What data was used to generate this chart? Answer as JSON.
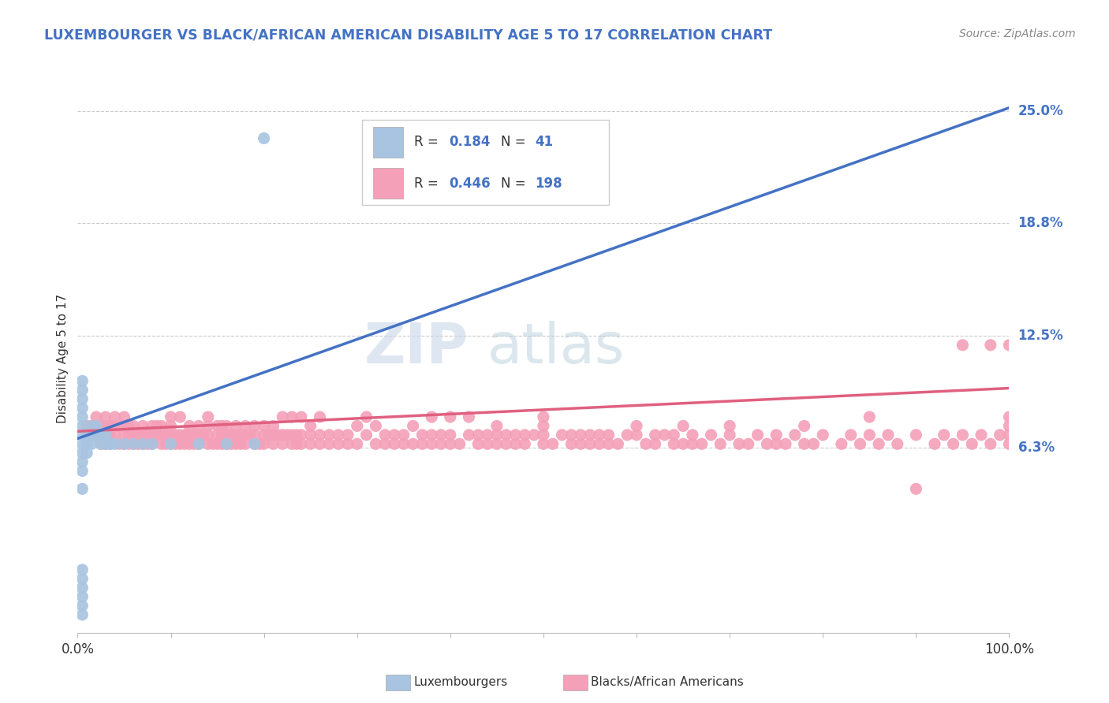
{
  "title": "LUXEMBOURGER VS BLACK/AFRICAN AMERICAN DISABILITY AGE 5 TO 17 CORRELATION CHART",
  "source": "Source: ZipAtlas.com",
  "ylabel": "Disability Age 5 to 17",
  "color_lux": "#a8c4e0",
  "color_black": "#f4a0b8",
  "color_lux_line": "#4472c4",
  "color_black_line": "#e06080",
  "color_lux_dash": "#8ab0d8",
  "xlim": [
    0.0,
    1.0
  ],
  "ylim": [
    -0.04,
    0.265
  ],
  "yticks_right": [
    0.063,
    0.125,
    0.188,
    0.25
  ],
  "ytick_right_labels": [
    "6.3%",
    "12.5%",
    "18.8%",
    "25.0%"
  ],
  "xticks": [
    0.0,
    0.1,
    0.2,
    0.3,
    0.4,
    0.5,
    0.6,
    0.7,
    0.8,
    0.9,
    1.0
  ],
  "xticklabels": [
    "0.0%",
    "",
    "",
    "",
    "",
    "",
    "",
    "",
    "",
    "",
    "100.0%"
  ],
  "lux_trendline_x": [
    0.0,
    1.0
  ],
  "lux_trendline_y": [
    0.068,
    0.252
  ],
  "black_trendline_x": [
    0.0,
    1.0
  ],
  "black_trendline_y": [
    0.072,
    0.096
  ],
  "lux_scatter": [
    [
      0.005,
      0.04
    ],
    [
      0.005,
      0.05
    ],
    [
      0.005,
      0.055
    ],
    [
      0.005,
      0.06
    ],
    [
      0.005,
      0.065
    ],
    [
      0.005,
      0.07
    ],
    [
      0.005,
      0.075
    ],
    [
      0.005,
      0.08
    ],
    [
      0.005,
      0.085
    ],
    [
      0.005,
      0.09
    ],
    [
      0.005,
      0.095
    ],
    [
      0.005,
      0.1
    ],
    [
      0.005,
      -0.005
    ],
    [
      0.005,
      -0.01
    ],
    [
      0.005,
      -0.015
    ],
    [
      0.005,
      -0.02
    ],
    [
      0.005,
      -0.025
    ],
    [
      0.005,
      -0.03
    ],
    [
      0.01,
      0.06
    ],
    [
      0.01,
      0.065
    ],
    [
      0.01,
      0.07
    ],
    [
      0.015,
      0.065
    ],
    [
      0.015,
      0.07
    ],
    [
      0.015,
      0.075
    ],
    [
      0.02,
      0.07
    ],
    [
      0.02,
      0.075
    ],
    [
      0.025,
      0.065
    ],
    [
      0.025,
      0.07
    ],
    [
      0.03,
      0.065
    ],
    [
      0.03,
      0.07
    ],
    [
      0.035,
      0.065
    ],
    [
      0.04,
      0.065
    ],
    [
      0.05,
      0.065
    ],
    [
      0.06,
      0.065
    ],
    [
      0.07,
      0.065
    ],
    [
      0.08,
      0.065
    ],
    [
      0.1,
      0.065
    ],
    [
      0.13,
      0.065
    ],
    [
      0.16,
      0.065
    ],
    [
      0.19,
      0.065
    ],
    [
      0.2,
      0.235
    ]
  ],
  "black_scatter": [
    [
      0.01,
      0.075
    ],
    [
      0.015,
      0.07
    ],
    [
      0.015,
      0.075
    ],
    [
      0.02,
      0.07
    ],
    [
      0.02,
      0.075
    ],
    [
      0.02,
      0.08
    ],
    [
      0.025,
      0.065
    ],
    [
      0.025,
      0.07
    ],
    [
      0.025,
      0.075
    ],
    [
      0.03,
      0.065
    ],
    [
      0.03,
      0.07
    ],
    [
      0.03,
      0.075
    ],
    [
      0.03,
      0.08
    ],
    [
      0.035,
      0.065
    ],
    [
      0.035,
      0.07
    ],
    [
      0.035,
      0.075
    ],
    [
      0.04,
      0.07
    ],
    [
      0.04,
      0.075
    ],
    [
      0.04,
      0.08
    ],
    [
      0.045,
      0.065
    ],
    [
      0.045,
      0.075
    ],
    [
      0.05,
      0.065
    ],
    [
      0.05,
      0.07
    ],
    [
      0.05,
      0.075
    ],
    [
      0.05,
      0.08
    ],
    [
      0.055,
      0.065
    ],
    [
      0.055,
      0.07
    ],
    [
      0.055,
      0.075
    ],
    [
      0.06,
      0.065
    ],
    [
      0.06,
      0.07
    ],
    [
      0.06,
      0.075
    ],
    [
      0.065,
      0.065
    ],
    [
      0.065,
      0.07
    ],
    [
      0.07,
      0.065
    ],
    [
      0.07,
      0.07
    ],
    [
      0.07,
      0.075
    ],
    [
      0.075,
      0.065
    ],
    [
      0.075,
      0.07
    ],
    [
      0.08,
      0.065
    ],
    [
      0.08,
      0.07
    ],
    [
      0.08,
      0.075
    ],
    [
      0.085,
      0.07
    ],
    [
      0.085,
      0.075
    ],
    [
      0.09,
      0.065
    ],
    [
      0.09,
      0.07
    ],
    [
      0.09,
      0.075
    ],
    [
      0.095,
      0.065
    ],
    [
      0.095,
      0.07
    ],
    [
      0.1,
      0.065
    ],
    [
      0.1,
      0.07
    ],
    [
      0.1,
      0.075
    ],
    [
      0.1,
      0.08
    ],
    [
      0.105,
      0.065
    ],
    [
      0.105,
      0.07
    ],
    [
      0.11,
      0.065
    ],
    [
      0.11,
      0.07
    ],
    [
      0.11,
      0.08
    ],
    [
      0.115,
      0.065
    ],
    [
      0.115,
      0.07
    ],
    [
      0.12,
      0.065
    ],
    [
      0.12,
      0.07
    ],
    [
      0.12,
      0.075
    ],
    [
      0.125,
      0.065
    ],
    [
      0.125,
      0.07
    ],
    [
      0.13,
      0.065
    ],
    [
      0.13,
      0.07
    ],
    [
      0.13,
      0.075
    ],
    [
      0.135,
      0.07
    ],
    [
      0.14,
      0.065
    ],
    [
      0.14,
      0.07
    ],
    [
      0.14,
      0.075
    ],
    [
      0.14,
      0.08
    ],
    [
      0.145,
      0.065
    ],
    [
      0.15,
      0.065
    ],
    [
      0.15,
      0.07
    ],
    [
      0.15,
      0.075
    ],
    [
      0.155,
      0.065
    ],
    [
      0.155,
      0.07
    ],
    [
      0.155,
      0.075
    ],
    [
      0.16,
      0.065
    ],
    [
      0.16,
      0.07
    ],
    [
      0.16,
      0.075
    ],
    [
      0.165,
      0.065
    ],
    [
      0.165,
      0.07
    ],
    [
      0.17,
      0.065
    ],
    [
      0.17,
      0.07
    ],
    [
      0.17,
      0.075
    ],
    [
      0.175,
      0.065
    ],
    [
      0.175,
      0.07
    ],
    [
      0.18,
      0.065
    ],
    [
      0.18,
      0.07
    ],
    [
      0.18,
      0.075
    ],
    [
      0.185,
      0.07
    ],
    [
      0.19,
      0.065
    ],
    [
      0.19,
      0.07
    ],
    [
      0.19,
      0.075
    ],
    [
      0.195,
      0.065
    ],
    [
      0.2,
      0.065
    ],
    [
      0.2,
      0.07
    ],
    [
      0.2,
      0.075
    ],
    [
      0.205,
      0.07
    ],
    [
      0.21,
      0.065
    ],
    [
      0.21,
      0.07
    ],
    [
      0.21,
      0.075
    ],
    [
      0.215,
      0.07
    ],
    [
      0.22,
      0.065
    ],
    [
      0.22,
      0.07
    ],
    [
      0.22,
      0.08
    ],
    [
      0.225,
      0.07
    ],
    [
      0.23,
      0.065
    ],
    [
      0.23,
      0.07
    ],
    [
      0.23,
      0.08
    ],
    [
      0.235,
      0.065
    ],
    [
      0.235,
      0.07
    ],
    [
      0.24,
      0.065
    ],
    [
      0.24,
      0.07
    ],
    [
      0.24,
      0.08
    ],
    [
      0.25,
      0.065
    ],
    [
      0.25,
      0.07
    ],
    [
      0.25,
      0.075
    ],
    [
      0.26,
      0.065
    ],
    [
      0.26,
      0.07
    ],
    [
      0.26,
      0.08
    ],
    [
      0.27,
      0.065
    ],
    [
      0.27,
      0.07
    ],
    [
      0.28,
      0.065
    ],
    [
      0.28,
      0.07
    ],
    [
      0.29,
      0.065
    ],
    [
      0.29,
      0.07
    ],
    [
      0.3,
      0.065
    ],
    [
      0.3,
      0.075
    ],
    [
      0.31,
      0.07
    ],
    [
      0.31,
      0.08
    ],
    [
      0.32,
      0.065
    ],
    [
      0.32,
      0.075
    ],
    [
      0.33,
      0.065
    ],
    [
      0.33,
      0.07
    ],
    [
      0.34,
      0.065
    ],
    [
      0.34,
      0.07
    ],
    [
      0.35,
      0.065
    ],
    [
      0.35,
      0.07
    ],
    [
      0.36,
      0.065
    ],
    [
      0.36,
      0.075
    ],
    [
      0.37,
      0.065
    ],
    [
      0.37,
      0.07
    ],
    [
      0.38,
      0.065
    ],
    [
      0.38,
      0.07
    ],
    [
      0.38,
      0.08
    ],
    [
      0.39,
      0.065
    ],
    [
      0.39,
      0.07
    ],
    [
      0.4,
      0.065
    ],
    [
      0.4,
      0.07
    ],
    [
      0.4,
      0.08
    ],
    [
      0.41,
      0.065
    ],
    [
      0.42,
      0.07
    ],
    [
      0.42,
      0.08
    ],
    [
      0.43,
      0.065
    ],
    [
      0.43,
      0.07
    ],
    [
      0.44,
      0.065
    ],
    [
      0.44,
      0.07
    ],
    [
      0.45,
      0.065
    ],
    [
      0.45,
      0.07
    ],
    [
      0.45,
      0.075
    ],
    [
      0.46,
      0.065
    ],
    [
      0.46,
      0.07
    ],
    [
      0.47,
      0.065
    ],
    [
      0.47,
      0.07
    ],
    [
      0.48,
      0.065
    ],
    [
      0.48,
      0.07
    ],
    [
      0.49,
      0.07
    ],
    [
      0.5,
      0.065
    ],
    [
      0.5,
      0.07
    ],
    [
      0.5,
      0.075
    ],
    [
      0.5,
      0.08
    ],
    [
      0.51,
      0.065
    ],
    [
      0.52,
      0.07
    ],
    [
      0.53,
      0.065
    ],
    [
      0.53,
      0.07
    ],
    [
      0.54,
      0.065
    ],
    [
      0.54,
      0.07
    ],
    [
      0.55,
      0.065
    ],
    [
      0.55,
      0.07
    ],
    [
      0.56,
      0.065
    ],
    [
      0.56,
      0.07
    ],
    [
      0.57,
      0.065
    ],
    [
      0.57,
      0.07
    ],
    [
      0.58,
      0.065
    ],
    [
      0.59,
      0.07
    ],
    [
      0.6,
      0.07
    ],
    [
      0.6,
      0.075
    ],
    [
      0.61,
      0.065
    ],
    [
      0.62,
      0.065
    ],
    [
      0.62,
      0.07
    ],
    [
      0.63,
      0.07
    ],
    [
      0.64,
      0.065
    ],
    [
      0.64,
      0.07
    ],
    [
      0.65,
      0.065
    ],
    [
      0.65,
      0.075
    ],
    [
      0.66,
      0.065
    ],
    [
      0.66,
      0.07
    ],
    [
      0.67,
      0.065
    ],
    [
      0.68,
      0.07
    ],
    [
      0.69,
      0.065
    ],
    [
      0.7,
      0.07
    ],
    [
      0.7,
      0.075
    ],
    [
      0.71,
      0.065
    ],
    [
      0.72,
      0.065
    ],
    [
      0.73,
      0.07
    ],
    [
      0.74,
      0.065
    ],
    [
      0.75,
      0.065
    ],
    [
      0.75,
      0.07
    ],
    [
      0.76,
      0.065
    ],
    [
      0.77,
      0.07
    ],
    [
      0.78,
      0.065
    ],
    [
      0.78,
      0.075
    ],
    [
      0.79,
      0.065
    ],
    [
      0.8,
      0.07
    ],
    [
      0.82,
      0.065
    ],
    [
      0.83,
      0.07
    ],
    [
      0.84,
      0.065
    ],
    [
      0.85,
      0.07
    ],
    [
      0.85,
      0.08
    ],
    [
      0.86,
      0.065
    ],
    [
      0.87,
      0.07
    ],
    [
      0.88,
      0.065
    ],
    [
      0.9,
      0.07
    ],
    [
      0.9,
      0.04
    ],
    [
      0.92,
      0.065
    ],
    [
      0.93,
      0.07
    ],
    [
      0.94,
      0.065
    ],
    [
      0.95,
      0.07
    ],
    [
      0.95,
      0.12
    ],
    [
      0.96,
      0.065
    ],
    [
      0.97,
      0.07
    ],
    [
      0.98,
      0.065
    ],
    [
      0.98,
      0.12
    ],
    [
      0.99,
      0.07
    ],
    [
      1.0,
      0.065
    ],
    [
      1.0,
      0.07
    ],
    [
      1.0,
      0.075
    ],
    [
      1.0,
      0.08
    ],
    [
      1.0,
      0.12
    ]
  ]
}
